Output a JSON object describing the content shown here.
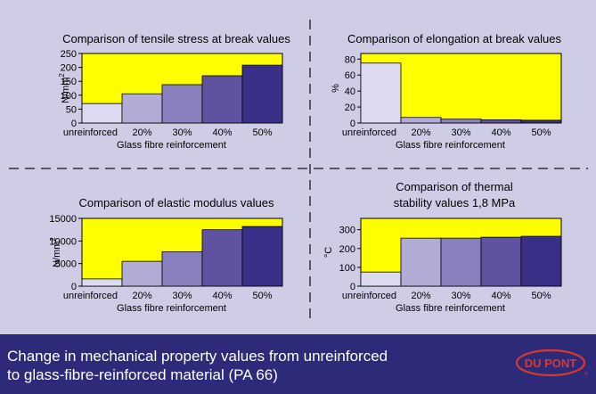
{
  "caption": {
    "line1": "Change in mechanical property values from unreinforced",
    "line2": "to glass-fibre-reinforced material (PA 66)"
  },
  "logo": {
    "text": "DU PONT",
    "trademark": "®"
  },
  "colors": {
    "panel_bg": "#cfcde6",
    "plot_bg": "#ffff00",
    "footer_bg": "#2e2a7a",
    "logo": "#d63a2a",
    "bars": [
      "#dcdaf0",
      "#b2abd6",
      "#8a7fbd",
      "#5f52a0",
      "#3a2f86"
    ]
  },
  "chart_data": [
    {
      "type": "bar",
      "title": "Comparison of tensile stress at break values",
      "ylabel": "N/mm",
      "ylabel_sup": "2",
      "xlabel": "Glass fibre reinforcement",
      "categories": [
        "unreinforced",
        "20%",
        "30%",
        "40%",
        "50%"
      ],
      "values": [
        70,
        105,
        138,
        170,
        208
      ],
      "ylim": [
        0,
        250
      ],
      "yticks": [
        0,
        50,
        100,
        150,
        200,
        250
      ],
      "ytick_labels": [
        "0",
        "50",
        "100",
        "150",
        "200",
        "250"
      ]
    },
    {
      "type": "bar",
      "title": "Comparison of elongation at break values",
      "ylabel": "%",
      "ylabel_sup": "",
      "xlabel": "Glass fibre reinforcement",
      "categories": [
        "unreinforced",
        "20%",
        "30%",
        "40%",
        "50%"
      ],
      "values": [
        75,
        7,
        5,
        4,
        3.5
      ],
      "ylim": [
        0,
        87
      ],
      "yticks": [
        0,
        20,
        40,
        60,
        80
      ],
      "ytick_labels": [
        "0",
        "20",
        "40",
        "60",
        "80"
      ]
    },
    {
      "type": "bar",
      "title": "Comparison of elastic modulus values",
      "ylabel": "N/mm",
      "ylabel_sup": "2",
      "xlabel": "Glass fibre reinforcement",
      "categories": [
        "unreinforced",
        "20%",
        "30%",
        "40%",
        "50%"
      ],
      "values": [
        1600,
        5500,
        7600,
        12500,
        13200
      ],
      "ylim": [
        0,
        15000
      ],
      "yticks": [
        0,
        5000,
        10000,
        15000
      ],
      "ytick_labels": [
        "0",
        "5000",
        "10000",
        "15000"
      ]
    },
    {
      "type": "bar",
      "title": "Comparison of thermal",
      "subtitle": "stability values  1,8 MPa",
      "ylabel": "°C",
      "ylabel_sup": "",
      "xlabel": "Glass fibre reinforcement",
      "categories": [
        "unreinforced",
        "20%",
        "30%",
        "40%",
        "50%"
      ],
      "values": [
        75,
        255,
        255,
        260,
        265
      ],
      "ylim": [
        0,
        360
      ],
      "yticks": [
        0,
        100,
        200,
        300
      ],
      "ytick_labels": [
        "0",
        "100",
        "200",
        "300"
      ]
    }
  ]
}
